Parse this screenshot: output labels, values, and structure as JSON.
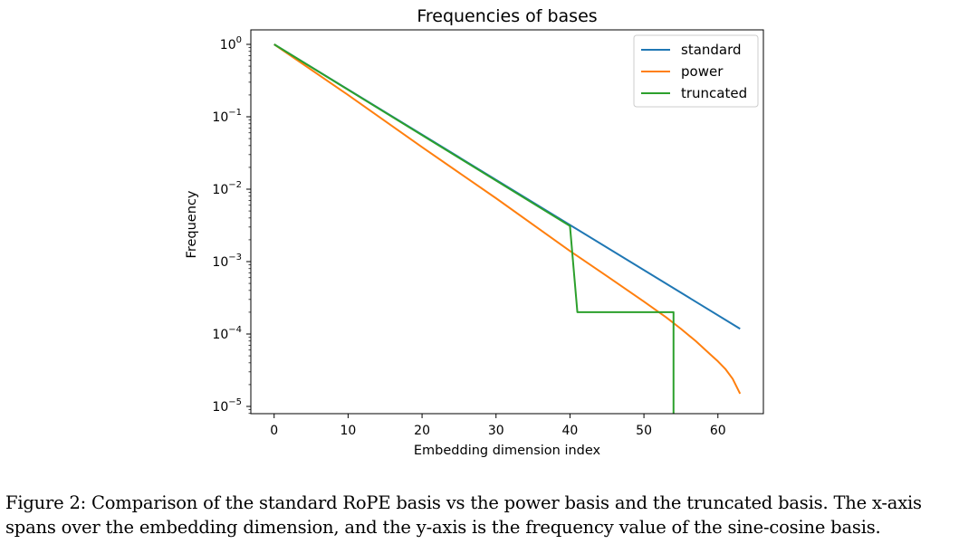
{
  "chart_data": {
    "type": "line",
    "title": "Frequencies of bases",
    "xlabel": "Embedding dimension index",
    "ylabel": "Frequency",
    "xlim": [
      -3.15,
      66.15
    ],
    "ylim_log10": [
      -5.1,
      0.2
    ],
    "yscale": "log",
    "grid": false,
    "legend_position": "top-right",
    "x_ticks": [
      {
        "value": 0,
        "label": "0"
      },
      {
        "value": 10,
        "label": "10"
      },
      {
        "value": 20,
        "label": "20"
      },
      {
        "value": 30,
        "label": "30"
      },
      {
        "value": 40,
        "label": "40"
      },
      {
        "value": 50,
        "label": "50"
      },
      {
        "value": 60,
        "label": "60"
      }
    ],
    "y_ticks": [
      {
        "exp": 0,
        "base": "10",
        "sup": "0"
      },
      {
        "exp": -1,
        "base": "10",
        "sup": "−1"
      },
      {
        "exp": -2,
        "base": "10",
        "sup": "−2"
      },
      {
        "exp": -3,
        "base": "10",
        "sup": "−3"
      },
      {
        "exp": -4,
        "base": "10",
        "sup": "−4"
      },
      {
        "exp": -5,
        "base": "10",
        "sup": "−5"
      }
    ],
    "series": [
      {
        "name": "standard",
        "color": "#1f77b4",
        "x": [
          0,
          63
        ],
        "y": [
          1,
          0.000118
        ]
      },
      {
        "name": "power",
        "color": "#ff7f0e",
        "x": [
          0,
          10,
          20,
          30,
          40,
          45,
          50,
          53,
          55,
          57,
          59,
          60,
          61,
          62,
          63
        ],
        "y": [
          1,
          0.2,
          0.038,
          0.0075,
          0.0014,
          0.00063,
          0.00028,
          0.00017,
          0.000118,
          8e-05,
          5.2e-05,
          4.2e-05,
          3.3e-05,
          2.4e-05,
          1.5e-05
        ]
      },
      {
        "name": "truncated",
        "color": "#2ca02c",
        "x": [
          0,
          40,
          41,
          54,
          54
        ],
        "y": [
          1,
          0.0031,
          0.0002,
          0.0002,
          7.9e-06
        ]
      }
    ]
  },
  "caption": {
    "line1": "Figure 2: Comparison of the standard RoPE basis vs the power basis and the truncated basis.  The x-axis",
    "line2": "spans over the embedding dimension, and the y-axis is the frequency value of the sine-cosine basis."
  }
}
